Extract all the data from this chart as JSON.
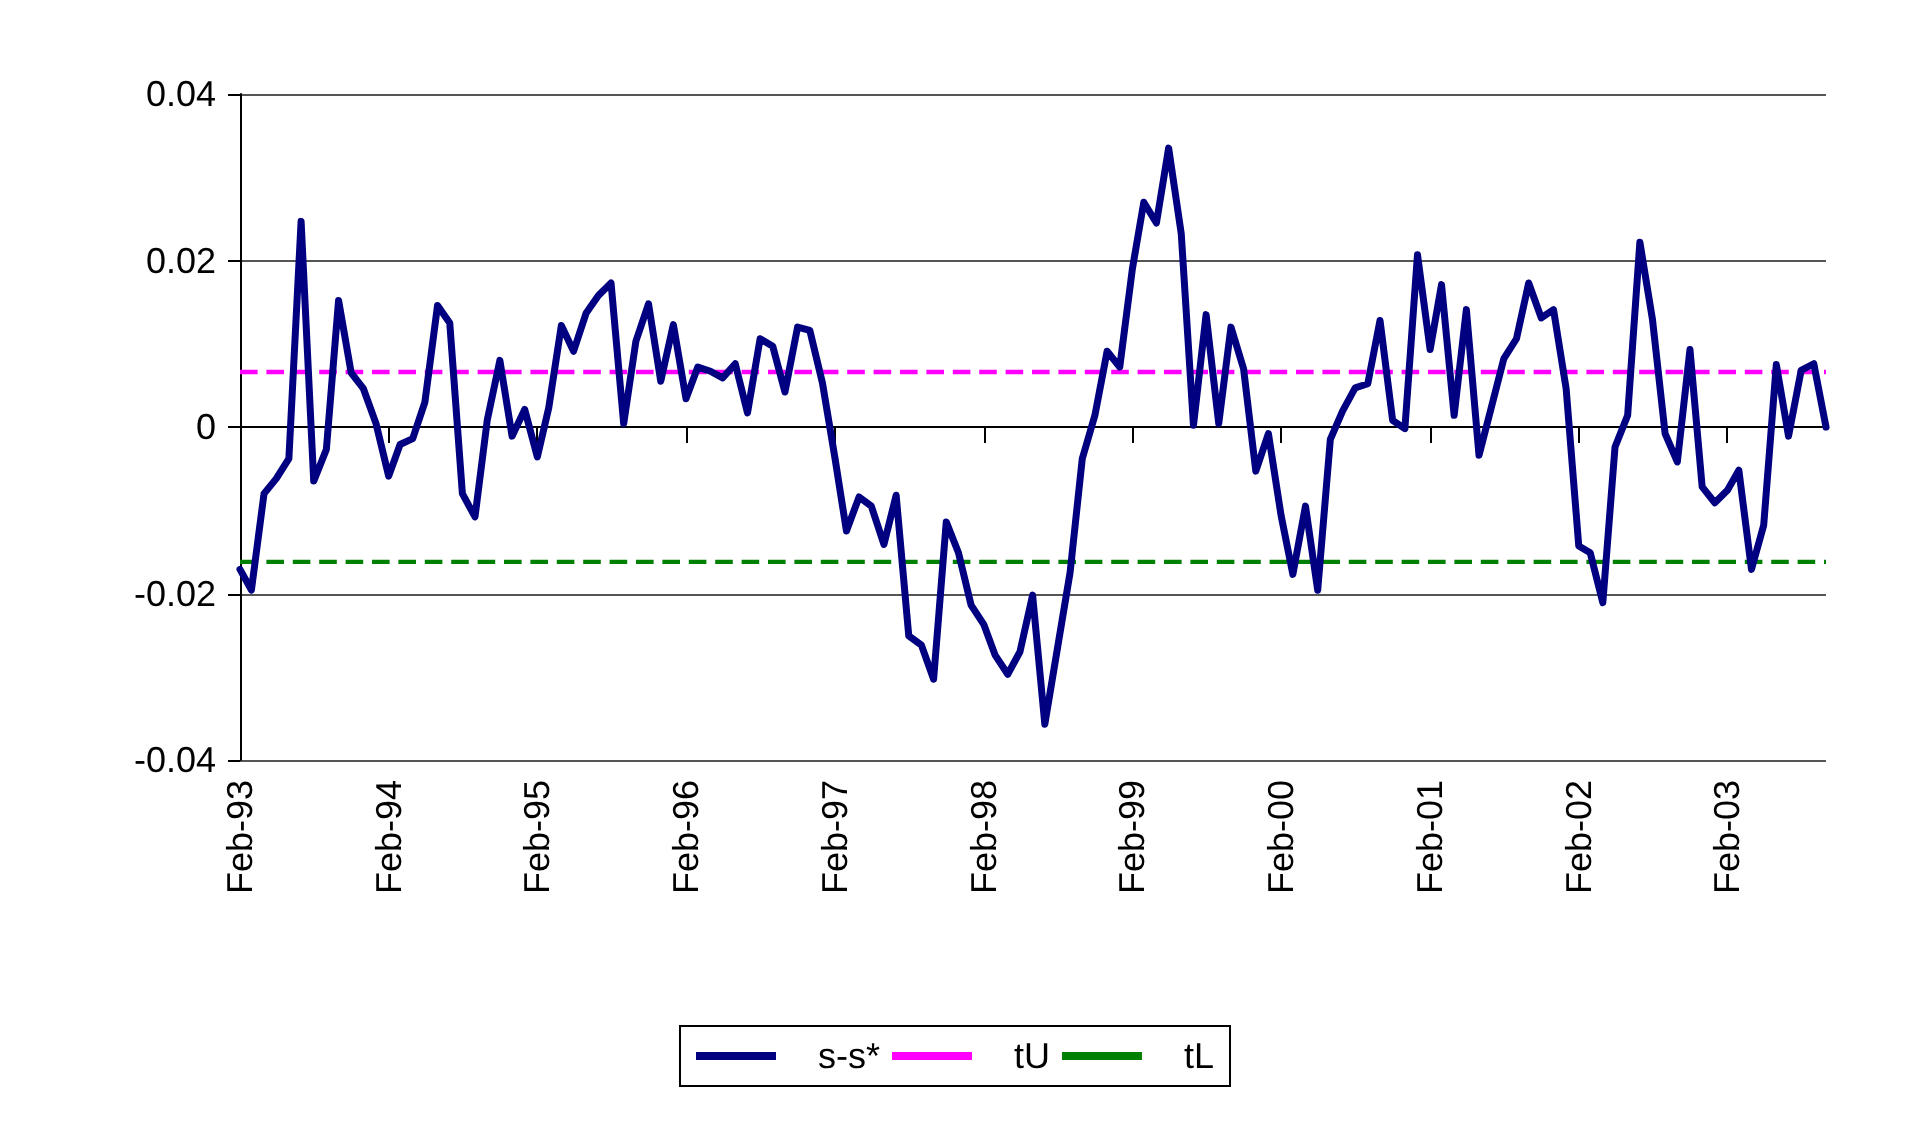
{
  "chart_data": {
    "type": "line",
    "x": [
      "1993-02",
      "1993-03",
      "1993-04",
      "1993-05",
      "1993-06",
      "1993-07",
      "1993-08",
      "1993-09",
      "1993-10",
      "1993-11",
      "1993-12",
      "1994-01",
      "1994-02",
      "1994-03",
      "1994-04",
      "1994-05",
      "1994-06",
      "1994-07",
      "1994-08",
      "1994-09",
      "1994-10",
      "1994-11",
      "1994-12",
      "1995-01",
      "1995-02",
      "1995-03",
      "1995-04",
      "1995-05",
      "1995-06",
      "1995-07",
      "1995-08",
      "1995-09",
      "1995-10",
      "1995-11",
      "1995-12",
      "1996-01",
      "1996-02",
      "1996-03",
      "1996-04",
      "1996-05",
      "1996-06",
      "1996-07",
      "1996-08",
      "1996-09",
      "1996-10",
      "1996-11",
      "1996-12",
      "1997-01",
      "1997-02",
      "1997-03",
      "1997-04",
      "1997-05",
      "1997-06",
      "1997-07",
      "1997-08",
      "1997-09",
      "1997-10",
      "1997-11",
      "1997-12",
      "1998-01",
      "1998-02",
      "1998-03",
      "1998-04",
      "1998-05",
      "1998-06",
      "1998-07",
      "1998-08",
      "1998-09",
      "1998-10",
      "1998-11",
      "1998-12",
      "1999-01",
      "1999-02",
      "1999-03",
      "1999-04",
      "1999-05",
      "1999-06",
      "1999-07",
      "1999-08",
      "1999-09",
      "1999-10",
      "1999-11",
      "1999-12",
      "2000-01",
      "2000-02",
      "2000-03",
      "2000-04",
      "2000-05",
      "2000-06",
      "2000-07",
      "2000-08",
      "2000-09",
      "2000-10",
      "2000-11",
      "2000-12",
      "2001-01",
      "2001-02",
      "2001-03",
      "2001-04",
      "2001-05",
      "2001-06",
      "2001-07",
      "2001-08",
      "2001-09",
      "2001-10",
      "2001-11",
      "2001-12",
      "2002-01",
      "2002-02",
      "2002-03",
      "2002-04",
      "2002-05",
      "2002-06",
      "2002-07",
      "2002-08",
      "2002-09",
      "2002-10",
      "2002-11",
      "2002-12",
      "2003-01",
      "2003-02",
      "2003-03",
      "2003-04",
      "2003-05",
      "2003-06",
      "2003-07",
      "2003-08",
      "2003-09",
      "2003-10"
    ],
    "series": [
      {
        "name": "s-s*",
        "color": "#000080",
        "values": [
          -0.0171,
          -0.0196,
          -0.008,
          -0.0062,
          -0.0038,
          0.0247,
          -0.0065,
          -0.0027,
          0.0152,
          0.0065,
          0.0046,
          0.0004,
          -0.0059,
          -0.0021,
          -0.0014,
          0.003,
          0.0146,
          0.0125,
          -0.008,
          -0.0108,
          0.0008,
          0.008,
          -0.0011,
          0.0021,
          -0.0036,
          0.0023,
          0.0122,
          0.0091,
          0.0137,
          0.0158,
          0.0173,
          0.0004,
          0.0103,
          0.0148,
          0.0055,
          0.0123,
          0.0034,
          0.0072,
          0.0067,
          0.0059,
          0.0076,
          0.0017,
          0.0106,
          0.0097,
          0.0042,
          0.012,
          0.0116,
          0.0053,
          -0.0038,
          -0.0125,
          -0.0084,
          -0.0095,
          -0.0141,
          -0.0082,
          -0.0251,
          -0.0262,
          -0.0303,
          -0.0114,
          -0.0151,
          -0.0214,
          -0.0237,
          -0.0274,
          -0.0297,
          -0.027,
          -0.0202,
          -0.0357,
          -0.0266,
          -0.0175,
          -0.0038,
          0.0014,
          0.0091,
          0.0072,
          0.019,
          0.027,
          0.0245,
          0.0335,
          0.0232,
          0.0002,
          0.0135,
          0.0004,
          0.012,
          0.007,
          -0.0053,
          -0.0008,
          -0.0106,
          -0.0177,
          -0.0095,
          -0.0196,
          -0.0015,
          0.0019,
          0.0047,
          0.0052,
          0.0128,
          0.0008,
          -0.0002,
          0.0207,
          0.0093,
          0.0171,
          0.0014,
          0.0141,
          -0.0034,
          0.0023,
          0.0082,
          0.0106,
          0.0173,
          0.0131,
          0.0141,
          0.0046,
          -0.0143,
          -0.0151,
          -0.0211,
          -0.0024,
          0.0014,
          0.0222,
          0.0129,
          -0.0008,
          -0.0042,
          0.0093,
          -0.0072,
          -0.0091,
          -0.0076,
          -0.0052,
          -0.0171,
          -0.0118,
          0.0075,
          -0.0011,
          0.0068,
          0.0076,
          0.0
        ]
      }
    ],
    "ref_lines": [
      {
        "axis": "y",
        "value": 0.0066,
        "label": "tU",
        "color": "#ff00ff",
        "line_style": "dashed"
      },
      {
        "axis": "y",
        "value": -0.0162,
        "label": "tL",
        "color": "#008000",
        "line_style": "dashed"
      }
    ],
    "xlim": [
      "1993-02",
      "2003-10"
    ],
    "xticks": [
      {
        "value": "1993-02",
        "label": "Feb-93"
      },
      {
        "value": "1994-02",
        "label": "Feb-94"
      },
      {
        "value": "1995-02",
        "label": "Feb-95"
      },
      {
        "value": "1996-02",
        "label": "Feb-96"
      },
      {
        "value": "1997-02",
        "label": "Feb-97"
      },
      {
        "value": "1998-02",
        "label": "Feb-98"
      },
      {
        "value": "1999-02",
        "label": "Feb-99"
      },
      {
        "value": "2000-02",
        "label": "Feb-00"
      },
      {
        "value": "2001-02",
        "label": "Feb-01"
      },
      {
        "value": "2002-02",
        "label": "Feb-02"
      },
      {
        "value": "2003-02",
        "label": "Feb-03"
      }
    ],
    "ylim": [
      -0.04,
      0.04
    ],
    "yticks": [
      -0.04,
      -0.02,
      0,
      0.02,
      0.04
    ],
    "grid": "y",
    "legend": "bottom",
    "marker": "none",
    "line_style": "solid"
  }
}
